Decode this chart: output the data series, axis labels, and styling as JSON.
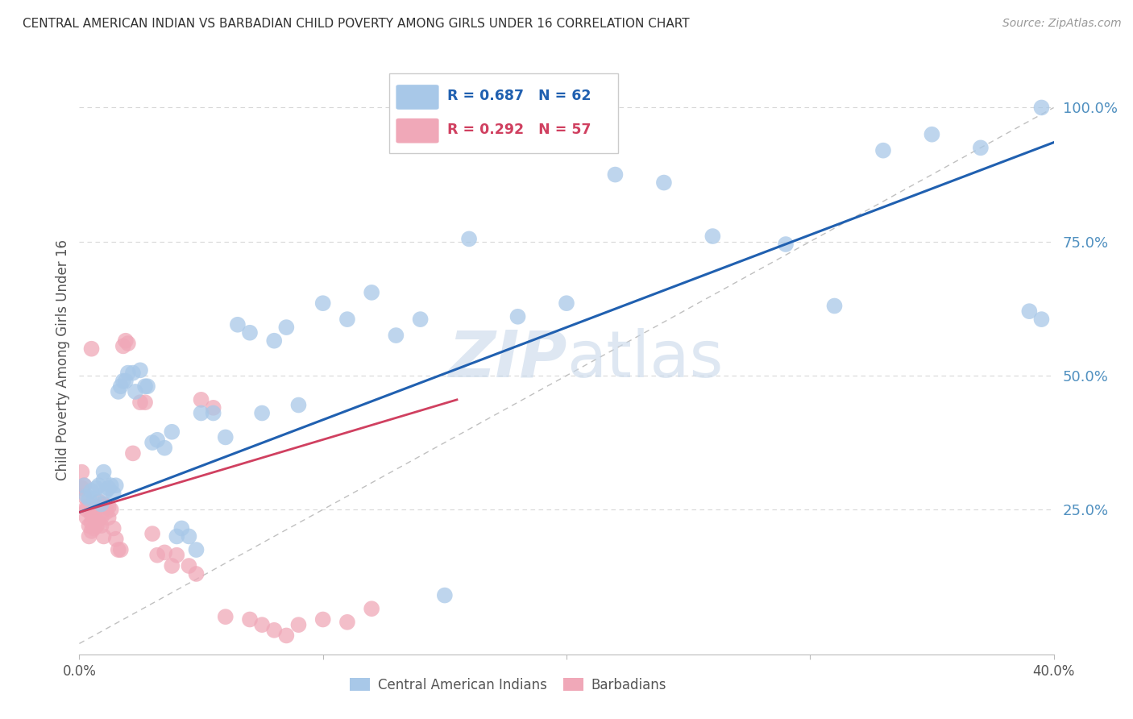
{
  "title": "CENTRAL AMERICAN INDIAN VS BARBADIAN CHILD POVERTY AMONG GIRLS UNDER 16 CORRELATION CHART",
  "source": "Source: ZipAtlas.com",
  "ylabel": "Child Poverty Among Girls Under 16",
  "xlim": [
    0.0,
    0.4
  ],
  "ylim": [
    -0.02,
    1.08
  ],
  "xtick_positions": [
    0.0,
    0.1,
    0.2,
    0.3,
    0.4
  ],
  "xtick_labels": [
    "0.0%",
    "",
    "",
    "",
    "40.0%"
  ],
  "yticks_right": [
    0.25,
    0.5,
    0.75,
    1.0
  ],
  "ytick_labels_right": [
    "25.0%",
    "50.0%",
    "75.0%",
    "100.0%"
  ],
  "legend_blue_r": "R = 0.687",
  "legend_blue_n": "N = 62",
  "legend_pink_r": "R = 0.292",
  "legend_pink_n": "N = 57",
  "blue_color": "#a8c8e8",
  "pink_color": "#f0a8b8",
  "blue_line_color": "#2060b0",
  "pink_line_color": "#d04060",
  "ref_line_color": "#c0c0c0",
  "grid_color": "#d8d8d8",
  "title_color": "#333333",
  "axis_label_color": "#555555",
  "right_label_color": "#5090c0",
  "watermark_color": "#c8d8ea",
  "blue_line_x": [
    0.0,
    0.4
  ],
  "blue_line_y": [
    0.245,
    0.935
  ],
  "pink_line_x": [
    0.0,
    0.155
  ],
  "pink_line_y": [
    0.245,
    0.455
  ],
  "ref_line_x": [
    0.0,
    0.4
  ],
  "ref_line_y": [
    0.0,
    1.0
  ],
  "blue_x": [
    0.002,
    0.003,
    0.004,
    0.005,
    0.006,
    0.007,
    0.008,
    0.009,
    0.01,
    0.01,
    0.011,
    0.012,
    0.013,
    0.014,
    0.015,
    0.016,
    0.017,
    0.018,
    0.019,
    0.02,
    0.022,
    0.023,
    0.025,
    0.027,
    0.028,
    0.03,
    0.032,
    0.035,
    0.038,
    0.04,
    0.042,
    0.045,
    0.048,
    0.05,
    0.055,
    0.06,
    0.065,
    0.07,
    0.075,
    0.08,
    0.085,
    0.09,
    0.1,
    0.11,
    0.12,
    0.13,
    0.14,
    0.15,
    0.16,
    0.18,
    0.2,
    0.22,
    0.24,
    0.26,
    0.29,
    0.31,
    0.33,
    0.35,
    0.37,
    0.39,
    0.395,
    0.395
  ],
  "blue_y": [
    0.295,
    0.275,
    0.27,
    0.285,
    0.27,
    0.29,
    0.295,
    0.26,
    0.32,
    0.305,
    0.285,
    0.29,
    0.295,
    0.28,
    0.295,
    0.47,
    0.48,
    0.49,
    0.49,
    0.505,
    0.505,
    0.47,
    0.51,
    0.48,
    0.48,
    0.375,
    0.38,
    0.365,
    0.395,
    0.2,
    0.215,
    0.2,
    0.175,
    0.43,
    0.43,
    0.385,
    0.595,
    0.58,
    0.43,
    0.565,
    0.59,
    0.445,
    0.635,
    0.605,
    0.655,
    0.575,
    0.605,
    0.09,
    0.755,
    0.61,
    0.635,
    0.875,
    0.86,
    0.76,
    0.745,
    0.63,
    0.92,
    0.95,
    0.925,
    0.62,
    0.605,
    1.0
  ],
  "pink_x": [
    0.001,
    0.001,
    0.002,
    0.002,
    0.003,
    0.003,
    0.003,
    0.004,
    0.004,
    0.005,
    0.005,
    0.005,
    0.006,
    0.006,
    0.007,
    0.007,
    0.007,
    0.008,
    0.008,
    0.009,
    0.009,
    0.01,
    0.01,
    0.011,
    0.011,
    0.012,
    0.012,
    0.013,
    0.014,
    0.015,
    0.016,
    0.017,
    0.018,
    0.019,
    0.02,
    0.022,
    0.025,
    0.027,
    0.03,
    0.032,
    0.035,
    0.038,
    0.04,
    0.045,
    0.048,
    0.05,
    0.055,
    0.06,
    0.07,
    0.075,
    0.08,
    0.085,
    0.09,
    0.1,
    0.11,
    0.12,
    0.005
  ],
  "pink_y": [
    0.32,
    0.29,
    0.295,
    0.275,
    0.25,
    0.235,
    0.255,
    0.22,
    0.2,
    0.21,
    0.225,
    0.24,
    0.215,
    0.24,
    0.22,
    0.23,
    0.255,
    0.225,
    0.265,
    0.22,
    0.235,
    0.2,
    0.26,
    0.245,
    0.255,
    0.235,
    0.255,
    0.25,
    0.215,
    0.195,
    0.175,
    0.175,
    0.555,
    0.565,
    0.56,
    0.355,
    0.45,
    0.45,
    0.205,
    0.165,
    0.17,
    0.145,
    0.165,
    0.145,
    0.13,
    0.455,
    0.44,
    0.05,
    0.045,
    0.035,
    0.025,
    0.015,
    0.035,
    0.045,
    0.04,
    0.065,
    0.55
  ]
}
